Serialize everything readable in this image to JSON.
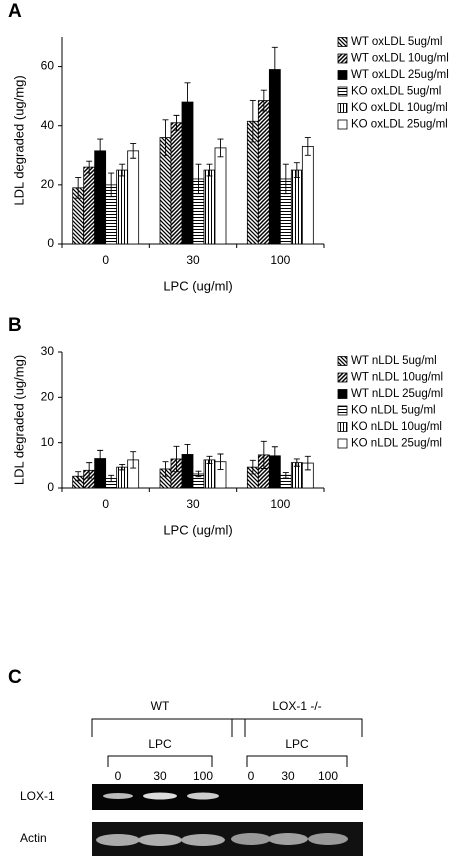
{
  "chart_data": [
    {
      "type": "bar",
      "panel_label": "A",
      "ylabel": "LDL degraded (ug/mg)",
      "xlabel": "LPC (ug/ml)",
      "categories": [
        "0",
        "30",
        "100"
      ],
      "ylim": [
        0,
        70
      ],
      "yticks": [
        0,
        20,
        40,
        60
      ],
      "series": [
        {
          "name": "WT oxLDL 5ug/ml",
          "color": "#000000",
          "pattern": "backslash",
          "values": [
            19,
            36,
            41.5
          ],
          "errors": [
            3.5,
            6,
            7
          ]
        },
        {
          "name": "WT oxLDL 10ug/ml",
          "color": "#000000",
          "pattern": "slash",
          "values": [
            26,
            41,
            48.5
          ],
          "errors": [
            2,
            2.5,
            3.5
          ]
        },
        {
          "name": "WT oxLDL 25ug/ml",
          "color": "#000000",
          "pattern": "solid",
          "values": [
            31.5,
            48,
            59
          ],
          "errors": [
            4,
            6.5,
            7.5
          ]
        },
        {
          "name": "KO oxLDL 5ug/ml",
          "color": "#000000",
          "pattern": "horizontal",
          "values": [
            20,
            22,
            22
          ],
          "errors": [
            4,
            5,
            5
          ]
        },
        {
          "name": "KO oxLDL 10ug/ml",
          "color": "#000000",
          "pattern": "vertical",
          "values": [
            25,
            25,
            25
          ],
          "errors": [
            2,
            2,
            2.5
          ]
        },
        {
          "name": "KO oxLDL 25ug/ml",
          "color": "#000000",
          "pattern": "none",
          "values": [
            31.5,
            32.5,
            33
          ],
          "errors": [
            2.5,
            3,
            3
          ]
        }
      ]
    },
    {
      "type": "bar",
      "panel_label": "B",
      "ylabel": "LDL degraded (ug/mg)",
      "xlabel": "LPC (ug/ml)",
      "categories": [
        "0",
        "30",
        "100"
      ],
      "ylim": [
        0,
        30
      ],
      "yticks": [
        0,
        10,
        20,
        30
      ],
      "series": [
        {
          "name": "WT nLDL 5ug/ml",
          "color": "#000000",
          "pattern": "backslash",
          "values": [
            2.6,
            4.2,
            4.6
          ],
          "errors": [
            1,
            1.6,
            1.5
          ]
        },
        {
          "name": "WT nLDL 10ug/ml",
          "color": "#000000",
          "pattern": "slash",
          "values": [
            3.9,
            6.4,
            7.3
          ],
          "errors": [
            1.7,
            2.8,
            3
          ]
        },
        {
          "name": "WT nLDL 25ug/ml",
          "color": "#000000",
          "pattern": "solid",
          "values": [
            6.5,
            7.4,
            7.1
          ],
          "errors": [
            1.8,
            2.2,
            2
          ]
        },
        {
          "name": "KO nLDL 5ug/ml",
          "color": "#000000",
          "pattern": "horizontal",
          "values": [
            2.1,
            3.1,
            2.8
          ],
          "errors": [
            0.7,
            0.6,
            0.6
          ]
        },
        {
          "name": "KO nLDL 10ug/ml",
          "color": "#000000",
          "pattern": "vertical",
          "values": [
            4.6,
            6.2,
            5.6
          ],
          "errors": [
            0.6,
            0.8,
            0.8
          ]
        },
        {
          "name": "KO nLDL 25ug/ml",
          "color": "#000000",
          "pattern": "none",
          "values": [
            6.2,
            5.8,
            5.5
          ],
          "errors": [
            1.8,
            1.7,
            1.5
          ]
        }
      ]
    }
  ],
  "gel": {
    "panel_label": "C",
    "groups": [
      {
        "label": "WT",
        "sublabel": "LPC",
        "lanes": [
          "0",
          "30",
          "100"
        ]
      },
      {
        "label": "LOX-1 -/-",
        "sublabel": "LPC",
        "lanes": [
          "0",
          "30",
          "100"
        ]
      }
    ],
    "rows": [
      "LOX-1",
      "Actin"
    ]
  }
}
